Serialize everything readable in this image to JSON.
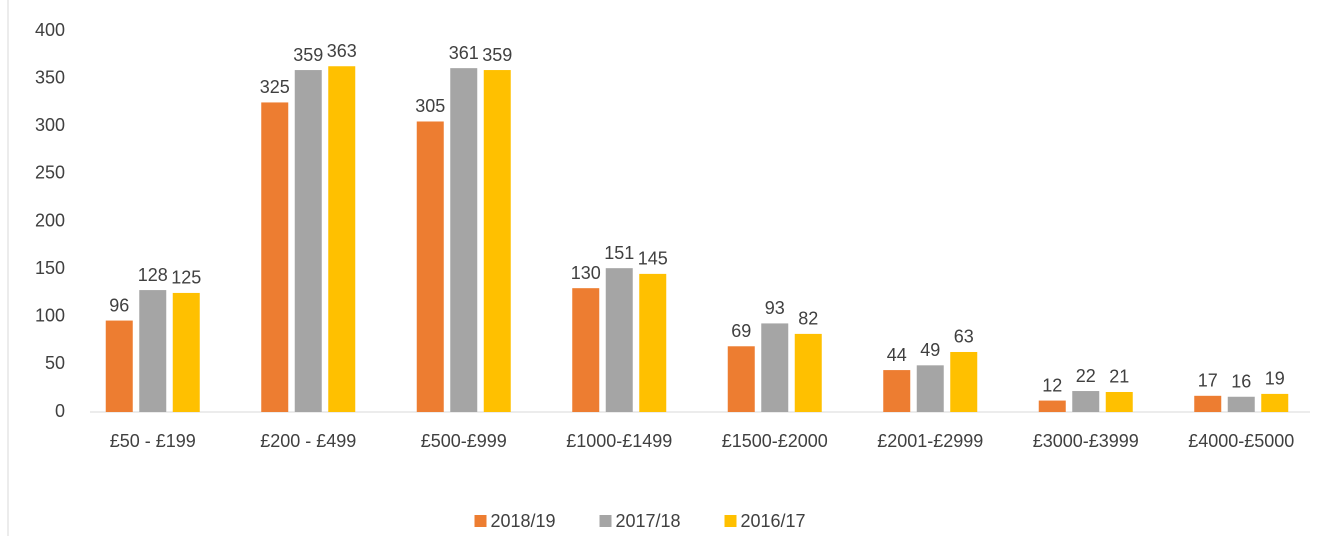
{
  "chart_data": {
    "type": "bar",
    "categories": [
      "£50 - £199",
      "£200 - £499",
      "£500-£999",
      "£1000-£1499",
      "£1500-£2000",
      "£2001-£2999",
      "£3000-£3999",
      "£4000-£5000"
    ],
    "series": [
      {
        "name": "2018/19",
        "color": "#ed7d31",
        "values": [
          96,
          325,
          305,
          130,
          69,
          44,
          12,
          17
        ]
      },
      {
        "name": "2017/18",
        "color": "#a5a5a5",
        "values": [
          128,
          359,
          361,
          151,
          93,
          49,
          22,
          16
        ]
      },
      {
        "name": "2016/17",
        "color": "#ffc000",
        "values": [
          125,
          363,
          359,
          145,
          82,
          63,
          21,
          19
        ]
      }
    ],
    "ylim": [
      0,
      400
    ],
    "yticks": [
      0,
      50,
      100,
      150,
      200,
      250,
      300,
      350,
      400
    ],
    "grid": false,
    "legend": "bottom"
  }
}
